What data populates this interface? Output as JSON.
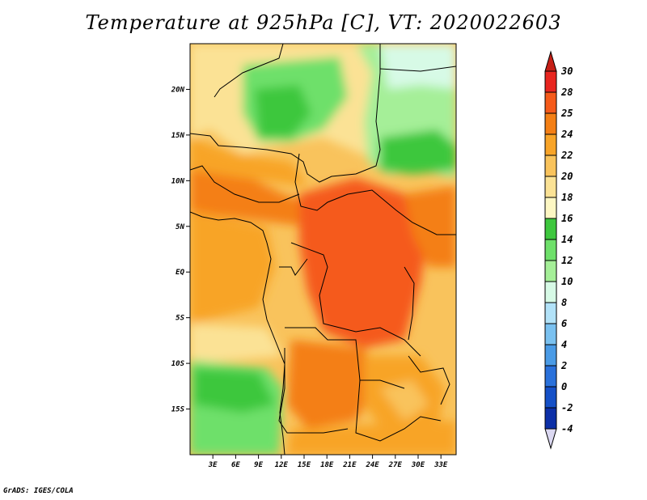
{
  "title": "Temperature at 925hPa [C], VT: 2020022603",
  "footer": "GrADS: IGES/COLA",
  "map": {
    "lon_range": [
      0,
      35
    ],
    "lat_range": [
      -20,
      25
    ],
    "lat_ticks": [
      {
        "value": 20,
        "label": "20N"
      },
      {
        "value": 15,
        "label": "15N"
      },
      {
        "value": 10,
        "label": "10N"
      },
      {
        "value": 5,
        "label": "5N"
      },
      {
        "value": 0,
        "label": "EQ"
      },
      {
        "value": -5,
        "label": "5S"
      },
      {
        "value": -10,
        "label": "10S"
      },
      {
        "value": -15,
        "label": "15S"
      }
    ],
    "lon_ticks": [
      {
        "value": 3,
        "label": "3E"
      },
      {
        "value": 6,
        "label": "6E"
      },
      {
        "value": 9,
        "label": "9E"
      },
      {
        "value": 12,
        "label": "12E"
      },
      {
        "value": 15,
        "label": "15E"
      },
      {
        "value": 18,
        "label": "18E"
      },
      {
        "value": 21,
        "label": "21E"
      },
      {
        "value": 24,
        "label": "24E"
      },
      {
        "value": 27,
        "label": "27E"
      },
      {
        "value": 30,
        "label": "30E"
      },
      {
        "value": 33,
        "label": "33E"
      }
    ]
  },
  "colorbar": {
    "labels": [
      "30",
      "28",
      "25",
      "24",
      "22",
      "20",
      "18",
      "16",
      "14",
      "12",
      "10",
      "8",
      "6",
      "4",
      "2",
      "0",
      "-2",
      "-4"
    ],
    "colors": [
      "#e8251f",
      "#f55a1a",
      "#f47f15",
      "#f8a428",
      "#f9c35c",
      "#fbe295",
      "#fdf7c3",
      "#3ec73e",
      "#6ee06a",
      "#a5ef98",
      "#d7fae6",
      "#b2e2f8",
      "#7ac1f0",
      "#4a9be6",
      "#2a71db",
      "#1550c7",
      "#0c2fa7",
      "#03136e"
    ],
    "end_low_color": "#dbd8f1",
    "end_high_color": "#c51f16"
  }
}
